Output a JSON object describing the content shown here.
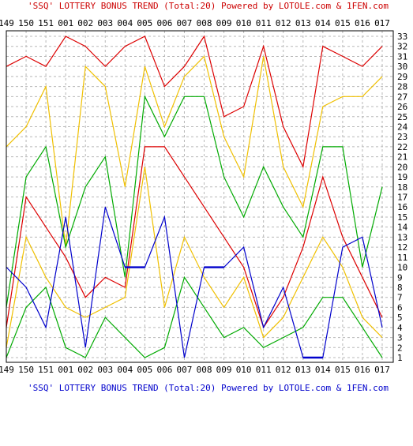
{
  "chart_data": {
    "type": "line",
    "title": "'SSQ' LOTTERY BONUS TREND (Total:20)  Powered by LOTOLE.com & 1FEN.com",
    "footer": "'SSQ' LOTTERY BONUS TREND (Total:20)  Powered by LOTOLE.com & 1FEN.com",
    "categories": [
      "149",
      "150",
      "151",
      "001",
      "002",
      "003",
      "004",
      "005",
      "006",
      "007",
      "008",
      "009",
      "010",
      "011",
      "012",
      "013",
      "014",
      "015",
      "016",
      "017"
    ],
    "ylim": [
      1,
      33
    ],
    "y_ticks": [
      "33",
      "32",
      "31",
      "30",
      "29",
      "28",
      "27",
      "26",
      "25",
      "24",
      "23",
      "22",
      "21",
      "20",
      "19",
      "18",
      "17",
      "16",
      "15",
      "14",
      "13",
      "12",
      "11",
      "10",
      "9",
      "8",
      "7",
      "6",
      "5",
      "4",
      "3",
      "2",
      "1"
    ],
    "grid": true,
    "series": [
      {
        "color": "#dd0000",
        "values": [
          30,
          31,
          30,
          33,
          32,
          30,
          32,
          33,
          28,
          30,
          33,
          25,
          26,
          32,
          24,
          20,
          32,
          31,
          30,
          32
        ]
      },
      {
        "color": "#f0c000",
        "values": [
          22,
          24,
          28,
          12,
          30,
          28,
          18,
          30,
          24,
          29,
          31,
          23,
          19,
          31,
          20,
          16,
          26,
          27,
          27,
          29
        ]
      },
      {
        "color": "#00aa00",
        "values": [
          6,
          19,
          22,
          12,
          18,
          21,
          9,
          27,
          23,
          27,
          27,
          19,
          15,
          20,
          16,
          13,
          22,
          22,
          10,
          18
        ]
      },
      {
        "color": "#dd0000",
        "values": [
          4,
          17,
          14,
          11,
          7,
          9,
          8,
          22,
          22,
          19,
          16,
          13,
          10,
          4,
          7,
          12,
          19,
          13,
          9,
          5
        ]
      },
      {
        "color": "#f0c000",
        "values": [
          2,
          13,
          9,
          6,
          5,
          6,
          7,
          20,
          6,
          13,
          9,
          6,
          9,
          3,
          5,
          9,
          13,
          10,
          5,
          3
        ]
      },
      {
        "color": "#00aa00",
        "values": [
          1,
          6,
          8,
          2,
          1,
          5,
          3,
          1,
          2,
          9,
          6,
          3,
          4,
          2,
          3,
          4,
          7,
          7,
          4,
          1
        ]
      },
      {
        "color": "#0000cc",
        "values": [
          10,
          8,
          4,
          15,
          2,
          16,
          10,
          10,
          15,
          1,
          10,
          10,
          12,
          4,
          8,
          1,
          1,
          12,
          13,
          4
        ]
      }
    ]
  }
}
